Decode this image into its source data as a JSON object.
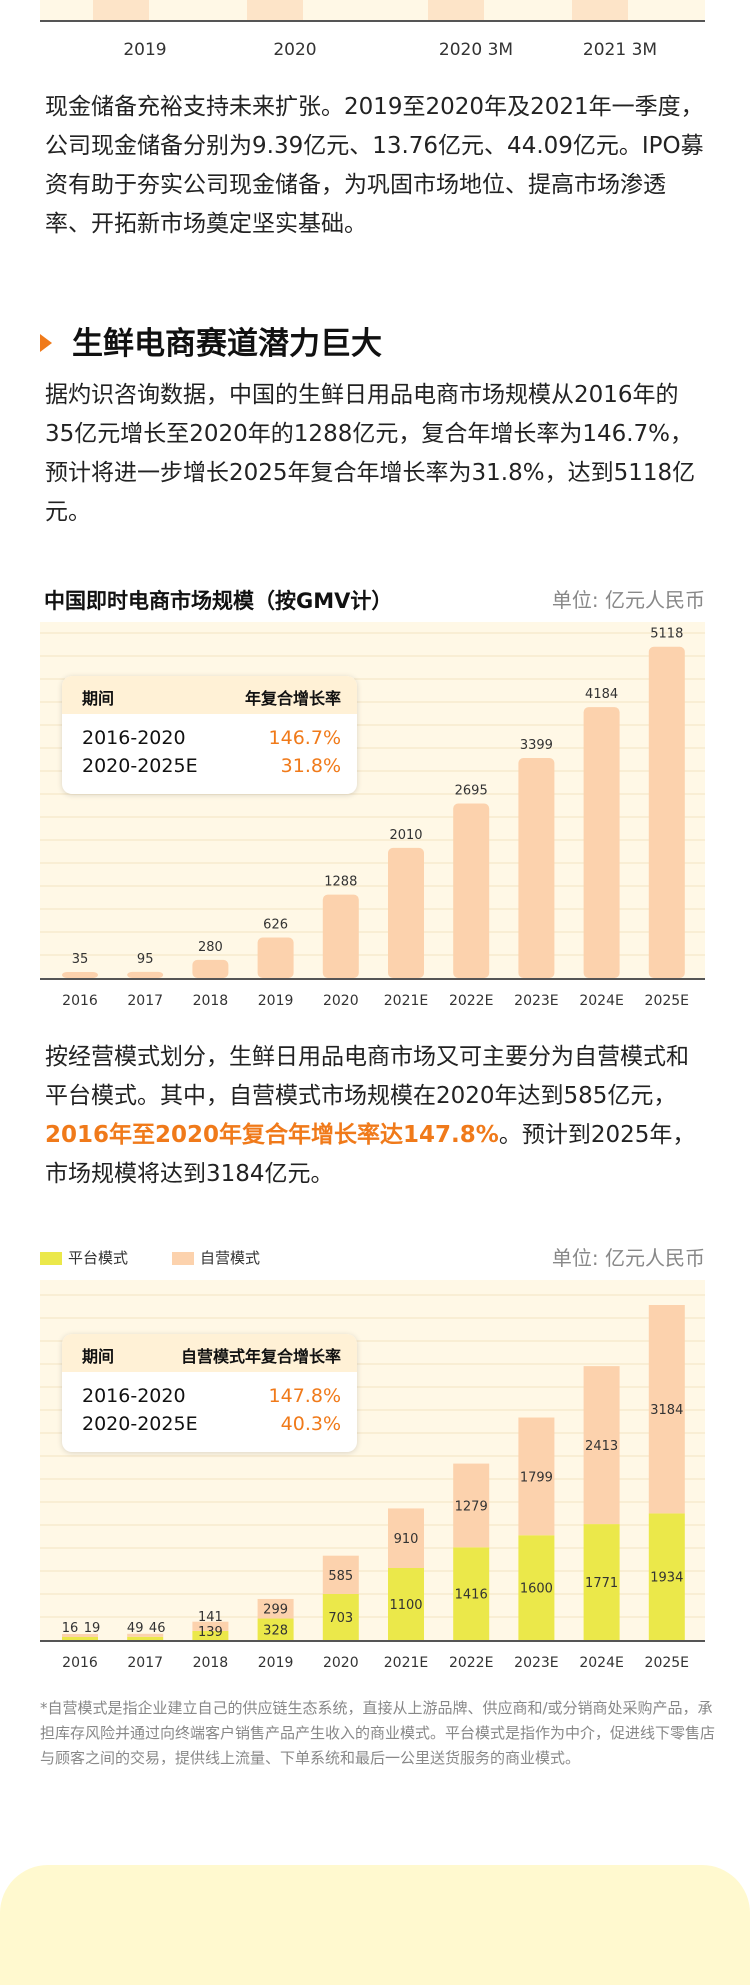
{
  "top_chart": {
    "x_labels": [
      "2019",
      "2020",
      "2020 3M",
      "2021 3M"
    ]
  },
  "para1": "现金储备充裕支持未来扩张。2019至2020年及2021年一季度，公司现金储备分别为9.39亿元、13.76亿元、44.09亿元。IPO募资有助于夯实公司现金储备，为巩固市场地位、提高市场渗透率、开拓新市场奠定坚实基础。",
  "section_title": "生鲜电商赛道潜力巨大",
  "para2": "据灼识咨询数据，中国的生鲜日用品电商市场规模从2016年的35亿元增长至2020年的1288亿元，复合年增长率为146.7%，预计将进一步增长2025年复合年增长率为31.8%，达到5118亿元。",
  "chart1_cagr": {
    "col_period": "期间",
    "col_rate": "年复合增长率",
    "rows": [
      {
        "period": "2016-2020",
        "rate": "146.7%"
      },
      {
        "period": "2020-2025E",
        "rate": "31.8%"
      }
    ]
  },
  "para3": {
    "before": "按经营模式划分，生鲜日用品电商市场又可主要分为自营模式和平台模式。其中，自营模式市场规模在2020年达到585亿元，",
    "highlight": "2016年至2020年复合年增长率达147.8%",
    "after": "。预计到2025年，市场规模将达到3184亿元。"
  },
  "chart2_cagr": {
    "col_period": "期间",
    "col_rate": "自营模式年复合增长率",
    "rows": [
      {
        "period": "2016-2020",
        "rate": "147.8%"
      },
      {
        "period": "2020-2025E",
        "rate": "40.3%"
      }
    ]
  },
  "footnote": "*自营模式是指企业建立自己的供应链生态系统，直接从上游品牌、供应商和/或分销商处采购产品，承担库存风险并通过向终端客户销售产品产生收入的商业模式。平台模式是指作为中介，促进线下零售店与顾客之间的交易，提供线上流量、下单系统和最后一公里送货服务的商业模式。",
  "chart_data": [
    {
      "type": "bar",
      "title": "中国即时电商市场规模（按GMV计）",
      "unit": "单位: 亿元人民币",
      "categories": [
        "2016",
        "2017",
        "2018",
        "2019",
        "2020",
        "2021E",
        "2022E",
        "2023E",
        "2024E",
        "2025E"
      ],
      "values": [
        35,
        95,
        280,
        626,
        1288,
        2010,
        2695,
        3399,
        4184,
        5118
      ],
      "ylim": [
        0,
        5500
      ],
      "grid": true,
      "colors": {
        "bar": "#fcd2ad",
        "plot_bg": "#fff8e6"
      }
    },
    {
      "type": "bar",
      "stacked": true,
      "unit": "单位: 亿元人民币",
      "categories": [
        "2016",
        "2017",
        "2018",
        "2019",
        "2020",
        "2021E",
        "2022E",
        "2023E",
        "2024E",
        "2025E"
      ],
      "series": [
        {
          "name": "平台模式",
          "values": [
            16,
            49,
            139,
            328,
            703,
            1100,
            1416,
            1600,
            1771,
            1934
          ],
          "color": "#ebe84a"
        },
        {
          "name": "自营模式",
          "values": [
            19,
            46,
            141,
            299,
            585,
            910,
            1279,
            1799,
            2413,
            3184
          ],
          "color": "#fcd2ad"
        }
      ],
      "ylim": [
        0,
        5500
      ],
      "grid": true,
      "colors": {
        "plot_bg": "#fff8e6"
      }
    }
  ]
}
